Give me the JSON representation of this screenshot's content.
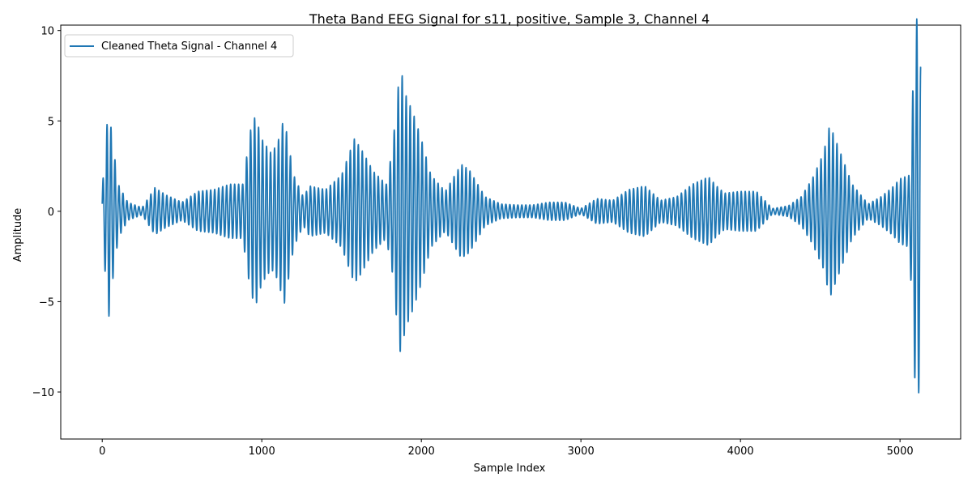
{
  "chart_data": {
    "type": "line",
    "title": "Theta Band EEG Signal for s11, positive, Sample 3, Channel 4",
    "xlabel": "Sample Index",
    "ylabel": "Amplitude",
    "xlim": [
      -260,
      5380
    ],
    "ylim": [
      -12.6,
      10.3
    ],
    "xticks": [
      0,
      1000,
      2000,
      3000,
      4000,
      5000
    ],
    "xtick_labels": [
      "0",
      "1000",
      "2000",
      "3000",
      "4000",
      "5000"
    ],
    "yticks": [
      -10,
      -5,
      0,
      5,
      10
    ],
    "ytick_labels": [
      "−10",
      "−5",
      "0",
      "5",
      "10"
    ],
    "grid": false,
    "legend_position": "top-left",
    "series": [
      {
        "name": "Cleaned Theta Signal - Channel 4",
        "color": "#1f77b4",
        "envelope": {
          "x": [
            0,
            40,
            60,
            100,
            160,
            250,
            330,
            400,
            500,
            600,
            700,
            800,
            880,
            930,
            960,
            1000,
            1060,
            1100,
            1140,
            1200,
            1260,
            1300,
            1400,
            1500,
            1580,
            1620,
            1700,
            1780,
            1820,
            1850,
            1870,
            1900,
            1950,
            2000,
            2060,
            2150,
            2250,
            2300,
            2400,
            2500,
            2600,
            2700,
            2800,
            2900,
            3000,
            3100,
            3200,
            3300,
            3400,
            3500,
            3600,
            3700,
            3800,
            3850,
            3900,
            4000,
            4100,
            4200,
            4300,
            4380,
            4450,
            4520,
            4560,
            4620,
            4700,
            4800,
            4880,
            4950,
            5000,
            5060,
            5090,
            5110,
            5130
          ],
          "amp": [
            1.2,
            6.0,
            4.2,
            1.5,
            0.5,
            0.2,
            1.3,
            0.9,
            0.5,
            1.1,
            1.2,
            1.5,
            1.5,
            4.5,
            5.3,
            4.0,
            3.2,
            3.8,
            5.2,
            2.0,
            0.8,
            1.4,
            1.2,
            2.0,
            4.0,
            3.5,
            2.2,
            1.5,
            3.5,
            6.5,
            8.0,
            6.5,
            5.4,
            4.0,
            2.0,
            1.1,
            2.6,
            2.3,
            0.8,
            0.4,
            0.35,
            0.35,
            0.5,
            0.5,
            0.15,
            0.7,
            0.6,
            1.2,
            1.4,
            0.6,
            0.8,
            1.5,
            1.9,
            1.4,
            1.0,
            1.1,
            1.1,
            0.15,
            0.3,
            0.8,
            1.8,
            3.2,
            4.8,
            3.4,
            1.5,
            0.4,
            0.8,
            1.3,
            1.8,
            2.0,
            9.0,
            11.2,
            8.0
          ],
          "freq_per_sample": 0.04
        }
      }
    ]
  }
}
